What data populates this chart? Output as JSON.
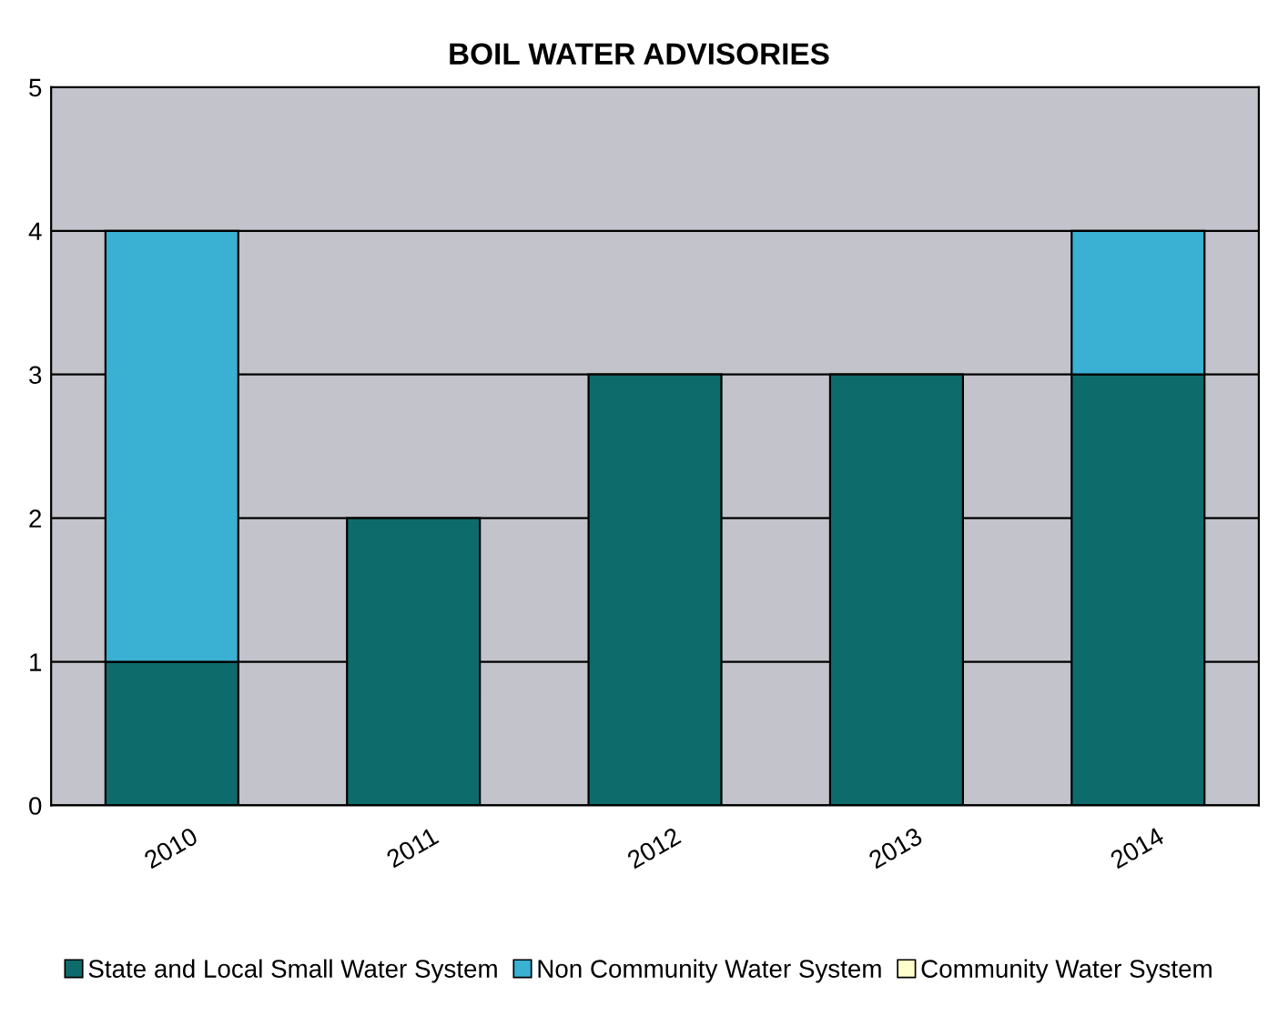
{
  "chart_data": {
    "type": "bar",
    "title": "BOIL WATER ADVISORIES",
    "stacked": true,
    "categories": [
      "2010",
      "2011",
      "2012",
      "2013",
      "2014"
    ],
    "series": [
      {
        "name": "State and Local Small Water System",
        "color": "#0e6b6b",
        "values": [
          1,
          2,
          3,
          3,
          3
        ]
      },
      {
        "name": "Non Community Water System",
        "color": "#3ab0d2",
        "values": [
          3,
          0,
          0,
          0,
          1
        ]
      },
      {
        "name": "Community Water System",
        "color": "#ffffcc",
        "values": [
          0,
          0,
          0,
          0,
          0
        ]
      }
    ],
    "ylim": [
      0,
      5
    ],
    "yticks": [
      0,
      1,
      2,
      3,
      4,
      5
    ],
    "grid": "y",
    "legend": "bottom"
  }
}
